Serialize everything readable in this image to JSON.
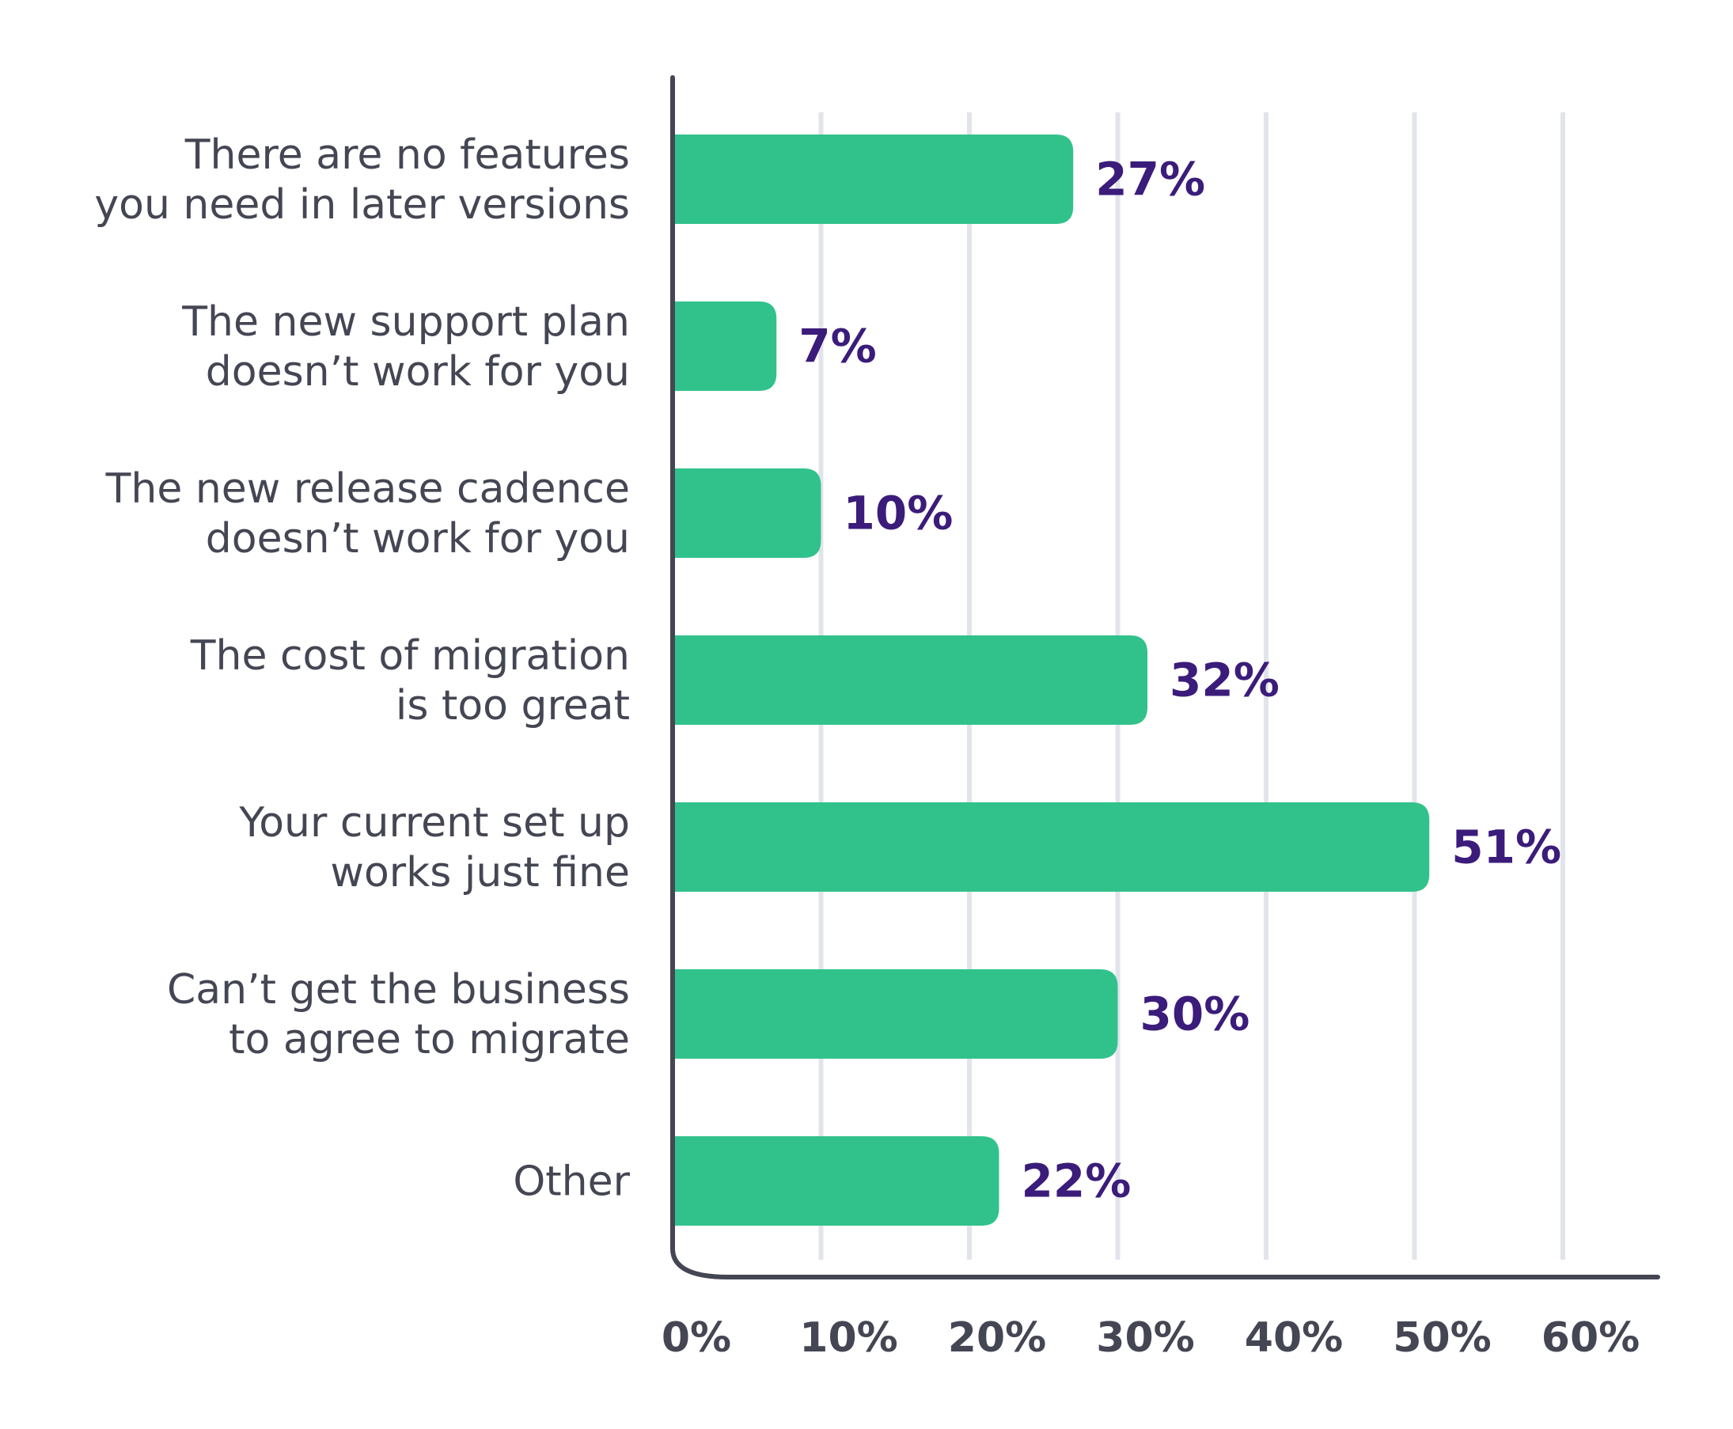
{
  "chart_data": {
    "type": "bar",
    "orientation": "horizontal",
    "categories": [
      [
        "There are no features",
        "you need in later versions"
      ],
      [
        "The new support plan",
        "doesn’t work for you"
      ],
      [
        "The new release cadence",
        "doesn’t work for you"
      ],
      [
        "The cost of migration",
        "is too great"
      ],
      [
        "Your current set up",
        "works just fine"
      ],
      [
        "Can’t get the business",
        "to agree to migrate"
      ],
      [
        "Other"
      ]
    ],
    "values": [
      27,
      7,
      10,
      32,
      51,
      30,
      22
    ],
    "value_labels": [
      "27%",
      "7%",
      "10%",
      "32%",
      "51%",
      "30%",
      "22%"
    ],
    "x_ticks": [
      0,
      10,
      20,
      30,
      40,
      50,
      60
    ],
    "x_tick_labels": [
      "0%",
      "10%",
      "20%",
      "30%",
      "40%",
      "50%",
      "60%"
    ],
    "xlim": [
      0,
      66
    ],
    "grid": true,
    "legend": "none",
    "colors": {
      "bar": "#31c28b",
      "value_text": "#3b1c7a",
      "axis": "#444653",
      "grid": "#e2e4eb",
      "label_text": "#444653"
    }
  }
}
